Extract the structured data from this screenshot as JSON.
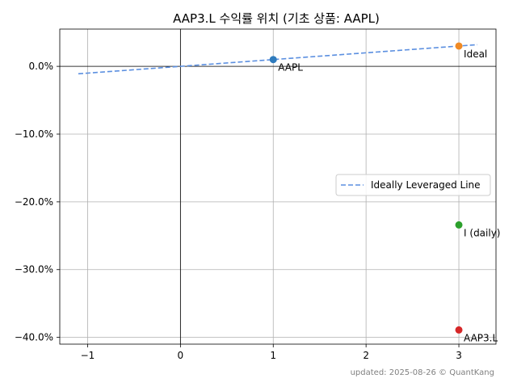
{
  "chart_data": {
    "type": "scatter",
    "title": "AAP3.L 수익률 위치 (기초 상품: AAPL)",
    "xlabel": "",
    "ylabel": "",
    "xlim": [
      -1.3,
      3.4
    ],
    "ylim": [
      -41,
      5.5
    ],
    "xticks": [
      -1,
      0,
      1,
      2,
      3
    ],
    "xtick_labels": [
      "−1",
      "0",
      "1",
      "2",
      "3"
    ],
    "yticks": [
      0,
      -10,
      -20,
      -30,
      -40
    ],
    "ytick_labels": [
      "0.0%",
      "−10.0%",
      "−20.0%",
      "−30.0%",
      "−40.0%"
    ],
    "grid": true,
    "legend_position": "center-right",
    "series": [
      {
        "name": "Ideally Leveraged Line",
        "kind": "line",
        "style": "dashed",
        "color": "#5b8fe0",
        "x": [
          -1.1,
          3.2
        ],
        "y": [
          -1.1,
          3.2
        ]
      }
    ],
    "points": [
      {
        "label": "AAPL",
        "x": 1,
        "y": 1.0,
        "color": "#2f7bbd"
      },
      {
        "label": "Ideal",
        "x": 3,
        "y": 3.0,
        "color": "#f08a24"
      },
      {
        "label": "I (daily)",
        "x": 3,
        "y": -23.4,
        "color": "#2ca02c"
      },
      {
        "label": "AAP3.L",
        "x": 3,
        "y": -38.9,
        "color": "#d62728"
      }
    ],
    "footer": "updated: 2025-08-26 © QuantKang"
  }
}
